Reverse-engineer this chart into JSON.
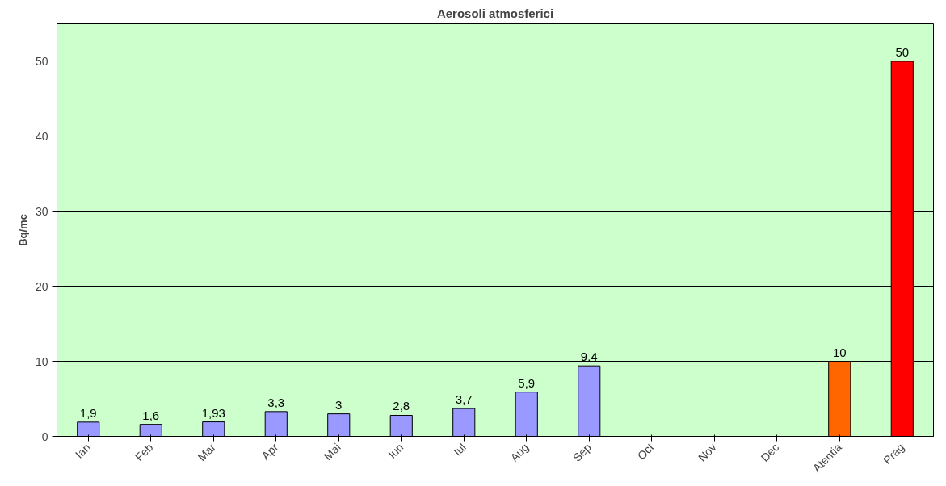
{
  "chart_data": {
    "type": "bar",
    "title": "Aerosoli atmosferici",
    "ylabel": "Bq/mc",
    "categories": [
      "Ian",
      "Feb",
      "Mar",
      "Apr",
      "Mai",
      "Iun",
      "Iul",
      "Aug",
      "Sep",
      "Oct",
      "Nov",
      "Dec",
      "Atentia",
      "Prag"
    ],
    "values": [
      1.9,
      1.6,
      1.93,
      3.3,
      3,
      2.8,
      3.7,
      5.9,
      9.4,
      null,
      null,
      null,
      10,
      50
    ],
    "colors": [
      "#9999ff",
      "#9999ff",
      "#9999ff",
      "#9999ff",
      "#9999ff",
      "#9999ff",
      "#9999ff",
      "#9999ff",
      "#9999ff",
      "#9999ff",
      "#9999ff",
      "#9999ff",
      "#ff6600",
      "#ff0000"
    ],
    "value_labels": [
      "1,9",
      "1,6",
      "1,93",
      "3,3",
      "3",
      "2,8",
      "3,7",
      "5,9",
      "9,4",
      null,
      null,
      null,
      "10",
      "50"
    ],
    "ylim": [
      0,
      55
    ],
    "yticks": [
      0,
      10,
      20,
      30,
      40,
      50
    ],
    "grid": "y"
  }
}
